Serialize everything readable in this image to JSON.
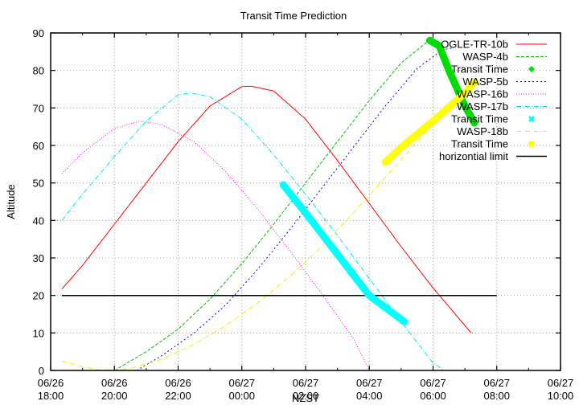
{
  "chart_data": {
    "type": "line",
    "title": "Transit Time Prediction",
    "xlabel": "NZST",
    "ylabel": "Altitude",
    "ylim": [
      0,
      90
    ],
    "yticks": [
      0,
      10,
      20,
      30,
      40,
      50,
      60,
      70,
      80,
      90
    ],
    "xlim_hours_from_start": [
      0,
      16
    ],
    "xticks": [
      {
        "h": 0,
        "date": "06/26",
        "time": "18:00"
      },
      {
        "h": 2,
        "date": "06/26",
        "time": "20:00"
      },
      {
        "h": 4,
        "date": "06/26",
        "time": "22:00"
      },
      {
        "h": 6,
        "date": "06/27",
        "time": "00:00"
      },
      {
        "h": 8,
        "date": "06/27",
        "time": "02:00"
      },
      {
        "h": 10,
        "date": "06/27",
        "time": "04:00"
      },
      {
        "h": 12,
        "date": "06/27",
        "time": "06:00"
      },
      {
        "h": 14,
        "date": "06/27",
        "time": "08:00"
      },
      {
        "h": 16,
        "date": "06/27",
        "time": "10:00"
      }
    ],
    "grid": true,
    "legend_position": "top-right-inside",
    "series": [
      {
        "name": "OGLE-TR-10b",
        "color": "#ff0000",
        "dash": "none",
        "kind": "line",
        "x": [
          0.35,
          1,
          2,
          3,
          4,
          5,
          6,
          6.3,
          7,
          8,
          9,
          10,
          11,
          12,
          13,
          13.2
        ],
        "y": [
          21.7,
          28,
          39,
          50,
          61,
          70.5,
          75.7,
          75.8,
          74.5,
          67,
          56,
          44.5,
          33,
          22,
          12,
          10
        ]
      },
      {
        "name": "WASP-4b",
        "color": "#00c000",
        "dash": "4,2",
        "kind": "line",
        "x": [
          2.0,
          3,
          4,
          5,
          6,
          7,
          8,
          9,
          10,
          11,
          11.8,
          12.0
        ],
        "y": [
          0,
          5,
          11,
          19,
          28.5,
          39,
          50,
          61,
          72,
          82,
          87.5,
          88
        ]
      },
      {
        "name": "Transit Time",
        "color": "#00dd00",
        "kind": "transit",
        "ref": "WASP-4b",
        "x": [
          11.9,
          12.2,
          12.5,
          13.0,
          13.3
        ],
        "y": [
          88,
          86.5,
          80,
          70.5,
          66
        ]
      },
      {
        "name": "WASP-5b",
        "color": "#0000ff",
        "dash": "2,3",
        "kind": "line",
        "x": [
          2.7,
          3.5,
          4.5,
          5.5,
          6.5,
          7.5,
          8.5,
          9.5,
          10.5,
          11.5,
          12.3,
          12.6
        ],
        "y": [
          0,
          4,
          10,
          17.5,
          27,
          37.5,
          48.5,
          59.5,
          70.5,
          80.5,
          85.5,
          86
        ]
      },
      {
        "name": "WASP-16b",
        "color": "#ff00ff",
        "dash": "1,2",
        "kind": "line",
        "x": [
          0.35,
          1,
          2,
          2.8,
          3.5,
          4.5,
          5.5,
          6.5,
          7.5,
          8.5,
          9.5,
          10.0
        ],
        "y": [
          52.5,
          58,
          64.5,
          66.5,
          65.5,
          61,
          53,
          43,
          32,
          20.5,
          8.5,
          0
        ]
      },
      {
        "name": "WASP-17b",
        "color": "#00e8e8",
        "dash": "6,2,1,2",
        "kind": "line",
        "x": [
          0.35,
          1,
          2,
          3,
          4,
          4.4,
          5,
          6,
          7,
          8,
          9,
          10,
          11,
          12,
          12.35
        ],
        "y": [
          40,
          47,
          57,
          66.5,
          73.5,
          74,
          73,
          67,
          57.5,
          47,
          36,
          24.5,
          13,
          2,
          0
        ]
      },
      {
        "name": "Transit Time",
        "color": "#00ffff",
        "kind": "transit",
        "ref": "WASP-17b",
        "x": [
          7.3,
          8.0,
          9.0,
          10.0,
          11.1
        ],
        "y": [
          49.5,
          42,
          31,
          20,
          13
        ]
      },
      {
        "name": "WASP-18b",
        "color": "#f0f000",
        "dash": "6,2,1,2",
        "kind": "line",
        "x": [
          0.35,
          1,
          1.6,
          2.5,
          3.5,
          4.5,
          5.5,
          6.5,
          7.5,
          8.5,
          9.5,
          10.5,
          11.5,
          12.5,
          13.3
        ],
        "y": [
          2.5,
          1,
          0,
          0.5,
          3,
          7,
          12,
          18,
          25,
          33,
          42,
          51.5,
          61,
          70.5,
          78
        ]
      },
      {
        "name": "Transit Time",
        "color": "#ffff00",
        "kind": "transit",
        "ref": "WASP-18b",
        "x": [
          10.5,
          11.0,
          12.0,
          13.0,
          13.3
        ],
        "y": [
          55.5,
          59.5,
          66.5,
          74,
          77
        ]
      },
      {
        "name": "horizontial limit",
        "color": "#000000",
        "dash": "none",
        "kind": "line",
        "x": [
          0.35,
          14.0
        ],
        "y": [
          20,
          20
        ]
      }
    ]
  },
  "legend": {
    "entries": [
      {
        "label": "OGLE-TR-10b",
        "color": "#ff0000",
        "style": "line",
        "dash": "none"
      },
      {
        "label": "WASP-4b",
        "color": "#00c000",
        "style": "line",
        "dash": "4,2"
      },
      {
        "label": "Transit Time",
        "color": "#00dd00",
        "style": "plus"
      },
      {
        "label": "WASP-5b",
        "color": "#0000ff",
        "style": "line",
        "dash": "2,3"
      },
      {
        "label": "WASP-16b",
        "color": "#ff00ff",
        "style": "line",
        "dash": "1,2"
      },
      {
        "label": "WASP-17b",
        "color": "#00e8e8",
        "style": "line",
        "dash": "6,2,1,2"
      },
      {
        "label": "Transit Time",
        "color": "#00ffff",
        "style": "cross"
      },
      {
        "label": "WASP-18b",
        "color": "#f0f000",
        "style": "line",
        "dash": "6,2,1,2"
      },
      {
        "label": "Transit Time",
        "color": "#ffff00",
        "style": "square"
      },
      {
        "label": "horizontial limit",
        "color": "#000000",
        "style": "line",
        "dash": "none"
      }
    ]
  }
}
